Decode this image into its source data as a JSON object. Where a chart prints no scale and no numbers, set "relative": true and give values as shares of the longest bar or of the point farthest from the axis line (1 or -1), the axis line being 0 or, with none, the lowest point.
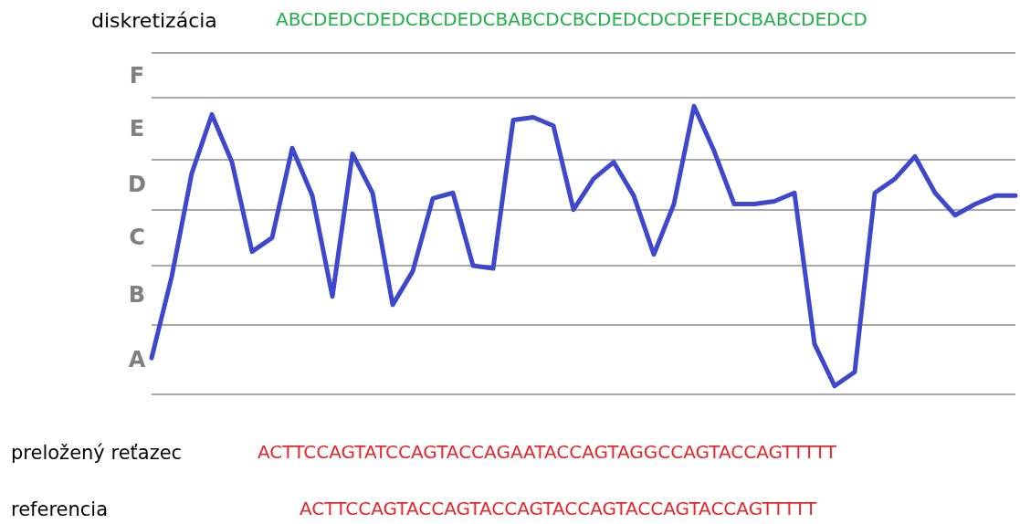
{
  "chart_data": {
    "type": "line",
    "title": "diskretizácia",
    "subtitle": "ABCDEDCDEDCBCDEDCBABCDCBCDEDCDCDEFEDCBABCDEDCD",
    "annotations": [
      "preložený reťazec",
      "ACTTCCAGTATCCAGTACCAGAATACCAGTAGGCCAGTACCAGTTTTT",
      "referencia",
      "ACTTCCAGTACCAGTACCAGTACCAGTACCAGTACCAGTTTTT",
      "A",
      "B",
      "C",
      "D",
      "E",
      "F"
    ],
    "relative": true,
    "categories": [
      null,
      null,
      null,
      null,
      null,
      null,
      null,
      null,
      null,
      null,
      null,
      null,
      null,
      null,
      null,
      null,
      null,
      null,
      null,
      null,
      null,
      null,
      null,
      null,
      null,
      null,
      null,
      null,
      null,
      null,
      null,
      null,
      null,
      null,
      null,
      null,
      null,
      null,
      null,
      null,
      null,
      null,
      null,
      null
    ],
    "series": [
      {
        "color": "#3f48cc",
        "values": [
          0.1,
          0.39,
          0.76,
          0.97,
          0.8,
          0.48,
          0.53,
          0.85,
          0.68,
          0.32,
          0.83,
          0.69,
          0.29,
          0.41,
          0.67,
          0.69,
          0.43,
          0.42,
          0.95,
          0.96,
          0.93,
          0.63,
          0.74,
          0.8,
          0.68,
          0.47,
          0.65,
          1,
          0.84,
          0.65,
          0.65,
          0.66,
          0.69,
          0.15,
          0,
          0.05,
          0.69,
          0.74,
          0.82,
          0.69,
          0.61,
          0.65,
          0.68,
          0.68
        ]
      }
    ],
    "ref_lines": [
      {
        "axis": "y",
        "value": -0.03,
        "color": "#8c8c8c"
      },
      {
        "axis": "y",
        "value": 0.22,
        "color": "#8c8c8c"
      },
      {
        "axis": "y",
        "value": 0.43,
        "color": "#8c8c8c"
      },
      {
        "axis": "y",
        "value": 0.63,
        "color": "#8c8c8c"
      },
      {
        "axis": "y",
        "value": 0.81,
        "color": "#8c8c8c"
      },
      {
        "axis": "y",
        "value": 1.03,
        "color": "#8c8c8c"
      },
      {
        "axis": "y",
        "value": 1.19,
        "color": "#8c8c8c"
      }
    ],
    "grid": false,
    "marker": "none",
    "line_style": "solid"
  }
}
